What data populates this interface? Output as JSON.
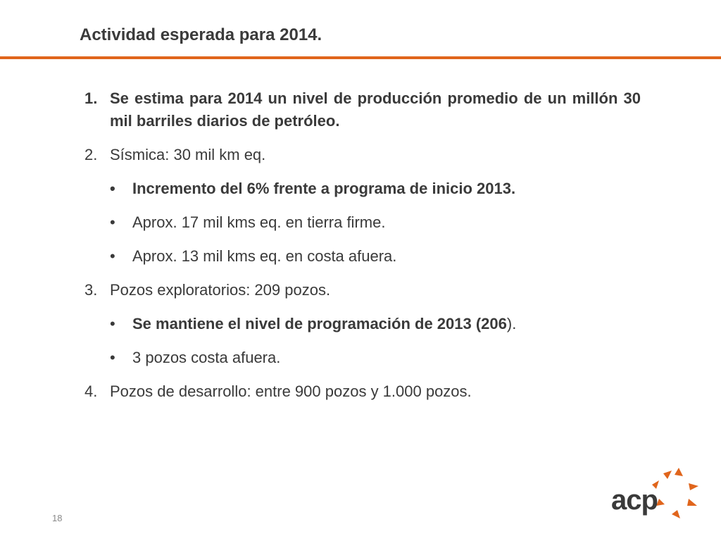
{
  "slide": {
    "title": "Actividad esperada para 2014.",
    "page_number": "18"
  },
  "items": [
    {
      "marker": "1.",
      "text": "Se estima para 2014 un nivel de producción promedio de un millón 30 mil barriles diarios de petróleo."
    },
    {
      "marker": "2.",
      "text": "Sísmica: 30 mil km eq."
    },
    {
      "marker": "•",
      "text": "Incremento del 6% frente a programa de inicio 2013."
    },
    {
      "marker": "•",
      "text": "Aprox. 17 mil kms eq. en tierra firme."
    },
    {
      "marker": "•",
      "text": "Aprox. 13 mil kms eq. en costa afuera."
    },
    {
      "marker": "3.",
      "text": "Pozos exploratorios: 209 pozos."
    },
    {
      "marker": "•",
      "text_bold": "Se mantiene el nivel de programación de 2013 (206",
      "text_tail": ")."
    },
    {
      "marker": "•",
      "text": "3 pozos costa afuera."
    },
    {
      "marker": "4.",
      "text": "Pozos de desarrollo: entre 900 pozos y 1.000 pozos."
    }
  ],
  "logo": {
    "text": "acp",
    "star_color": "#e0651c",
    "text_color": "#3a3a3a"
  }
}
